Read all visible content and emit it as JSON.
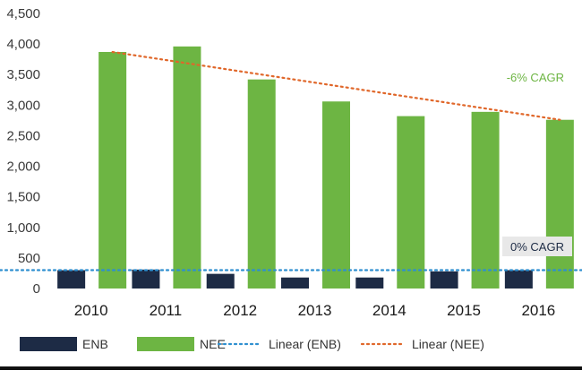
{
  "chart_data": {
    "type": "bar",
    "title": "",
    "xlabel": "",
    "ylabel": "",
    "categories": [
      "2010",
      "2011",
      "2012",
      "2013",
      "2014",
      "2015",
      "2016"
    ],
    "series": [
      {
        "name": "ENB",
        "values": [
          300,
          310,
          240,
          180,
          180,
          280,
          300
        ],
        "color": "#1d2b45"
      },
      {
        "name": "NEE",
        "values": [
          3870,
          3960,
          3420,
          3060,
          2820,
          2890,
          2760
        ],
        "color": "#6db543"
      }
    ],
    "trendlines": [
      {
        "name": "Linear (ENB)",
        "series": "ENB",
        "start": 300,
        "end": 300,
        "color": "#2e8fd0",
        "style": "dotted"
      },
      {
        "name": "Linear (NEE)",
        "series": "NEE",
        "start": 3870,
        "end": 2760,
        "color": "#e0672a",
        "style": "dotted"
      }
    ],
    "annotations": [
      {
        "text": "-6% CAGR",
        "color": "#6db543"
      },
      {
        "text": "0% CAGR",
        "color": "#1d2b45",
        "background": "#e8e8e8"
      }
    ],
    "yticks": [
      "0",
      "500",
      "1,000",
      "1,500",
      "2,000",
      "2,500",
      "3,000",
      "3,500",
      "4,000",
      "4,500"
    ],
    "ylim": [
      0,
      4500
    ],
    "grid": false,
    "legend": "bottom"
  }
}
